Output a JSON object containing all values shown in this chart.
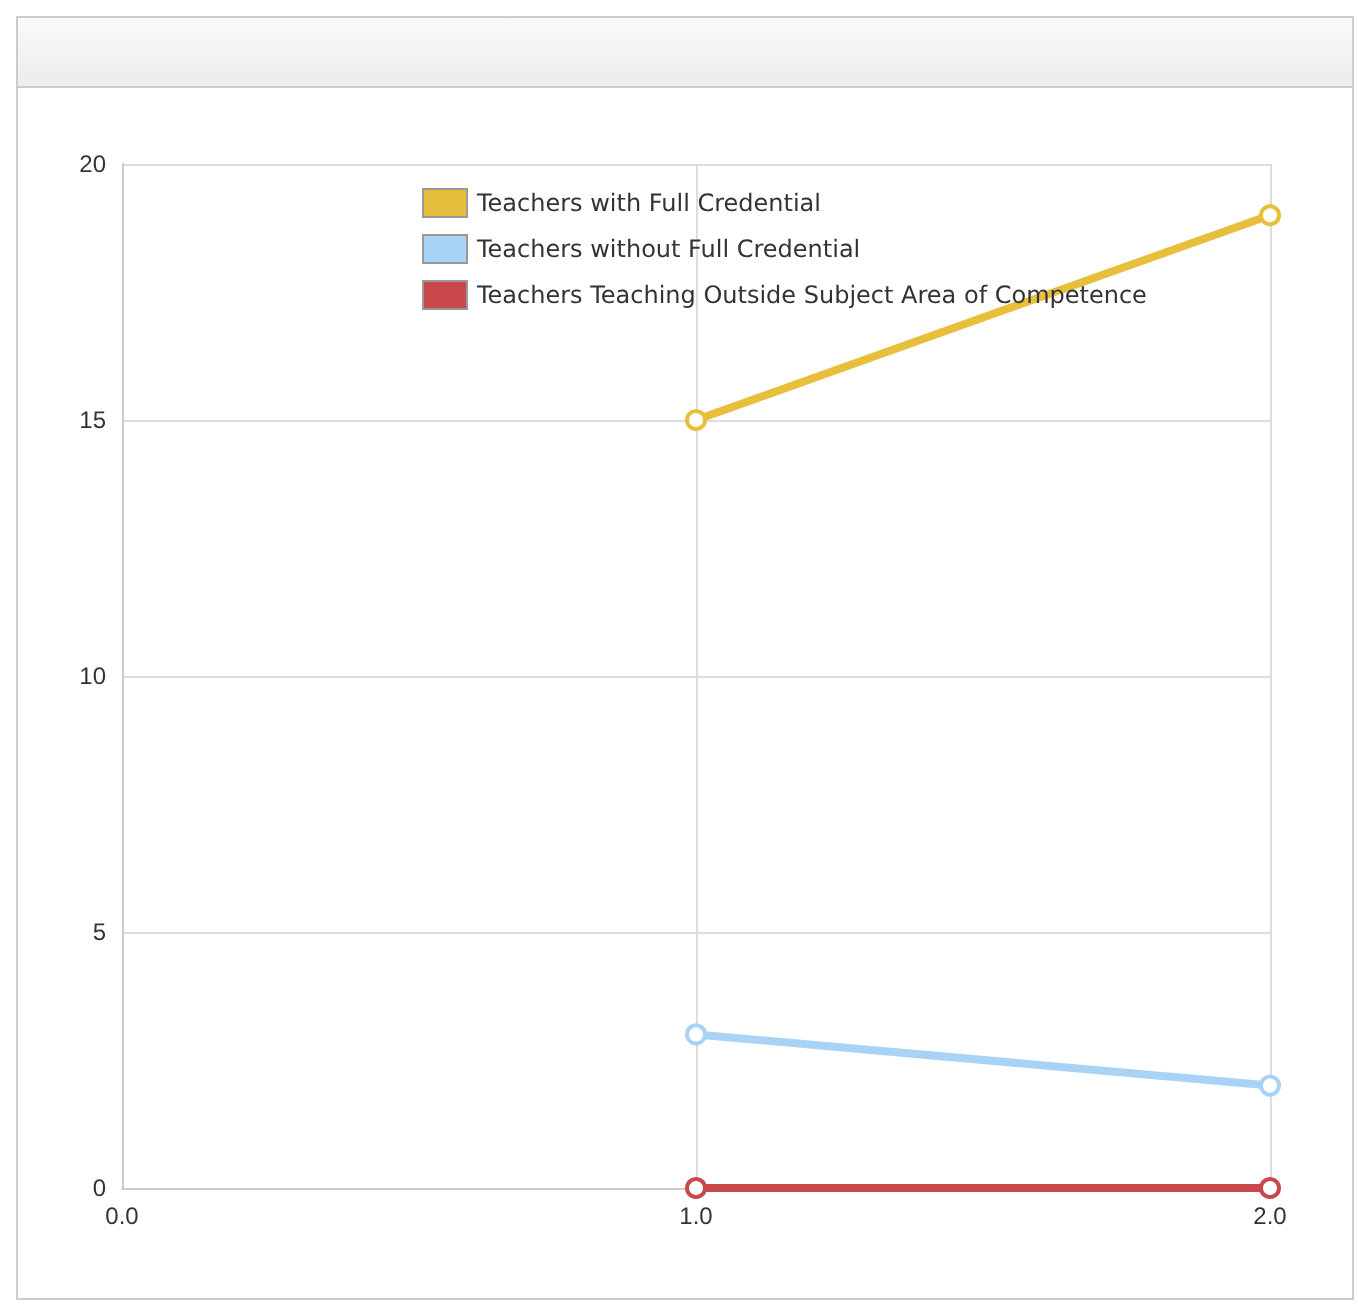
{
  "chart_data": {
    "type": "line",
    "x": [
      1,
      2
    ],
    "series": [
      {
        "name": "Teachers with Full Credential",
        "color": "#e8bf3c",
        "values": [
          15,
          19
        ]
      },
      {
        "name": "Teachers without Full Credential",
        "color": "#a9d3f5",
        "values": [
          3,
          2
        ]
      },
      {
        "name": "Teachers Teaching Outside Subject Area of Competence",
        "color": "#c9484a",
        "values": [
          0,
          0
        ]
      }
    ],
    "xlim": [
      0,
      2
    ],
    "xticks": [
      {
        "value": 0,
        "label": "0.0"
      },
      {
        "value": 1,
        "label": "1.0"
      },
      {
        "value": 2,
        "label": "2.0"
      }
    ],
    "ylim": [
      0,
      20
    ],
    "yticks": [
      0,
      5,
      10,
      15,
      20
    ],
    "grid": true,
    "legend": "top",
    "marker": "circle",
    "line_style": "solid"
  }
}
